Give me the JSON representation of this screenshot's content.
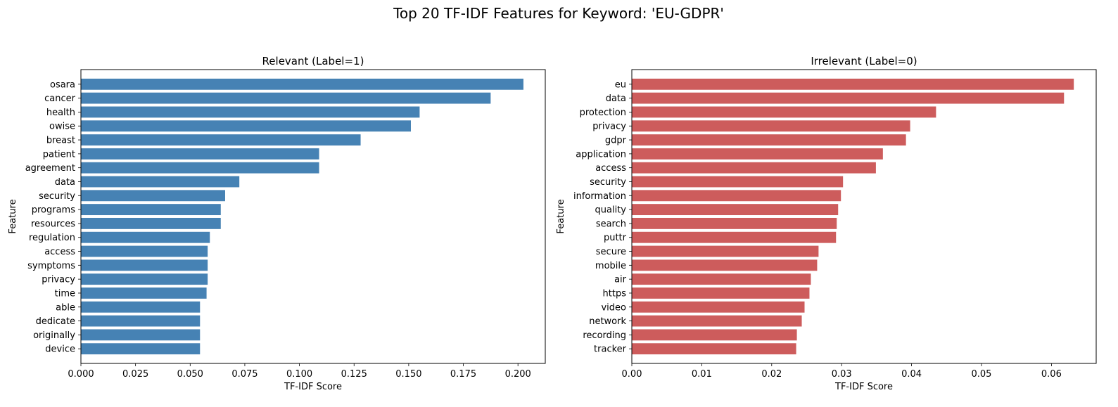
{
  "figure": {
    "suptitle": "Top 20 TF-IDF Features for Keyword: 'EU-GDPR'"
  },
  "chart_data": [
    {
      "type": "bar",
      "orientation": "horizontal",
      "title": "Relevant (Label=1)",
      "xlabel": "TF-IDF Score",
      "ylabel": "Feature",
      "xlim": [
        0,
        0.2125
      ],
      "xticks": [
        "0.000",
        "0.025",
        "0.050",
        "0.075",
        "0.100",
        "0.125",
        "0.150",
        "0.175",
        "0.200"
      ],
      "color": "#4682b4",
      "grid": false,
      "categories": [
        "osara",
        "cancer",
        "health",
        "owise",
        "breast",
        "patient",
        "agreement",
        "data",
        "security",
        "programs",
        "resources",
        "regulation",
        "access",
        "symptoms",
        "privacy",
        "time",
        "able",
        "dedicate",
        "originally",
        "device"
      ],
      "values": [
        0.2025,
        0.1875,
        0.155,
        0.151,
        0.128,
        0.109,
        0.109,
        0.0725,
        0.066,
        0.064,
        0.064,
        0.059,
        0.058,
        0.058,
        0.058,
        0.0575,
        0.0545,
        0.0545,
        0.0545,
        0.0545
      ]
    },
    {
      "type": "bar",
      "orientation": "horizontal",
      "title": "Irrelevant (Label=0)",
      "xlabel": "TF-IDF Score",
      "ylabel": "Feature",
      "xlim": [
        0,
        0.0664
      ],
      "xticks": [
        "0.00",
        "0.01",
        "0.02",
        "0.03",
        "0.04",
        "0.05",
        "0.06"
      ],
      "color": "#cd5c5c",
      "grid": false,
      "categories": [
        "eu",
        "data",
        "protection",
        "privacy",
        "gdpr",
        "application",
        "access",
        "security",
        "information",
        "quality",
        "search",
        "puttr",
        "secure",
        "mobile",
        "air",
        "https",
        "video",
        "network",
        "recording",
        "tracker"
      ],
      "values": [
        0.0632,
        0.0618,
        0.0435,
        0.0398,
        0.0392,
        0.0359,
        0.0349,
        0.0302,
        0.0299,
        0.0295,
        0.0293,
        0.0292,
        0.0267,
        0.0265,
        0.0256,
        0.0254,
        0.0247,
        0.0243,
        0.0236,
        0.0235
      ]
    }
  ]
}
